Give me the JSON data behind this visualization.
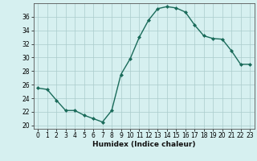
{
  "x": [
    0,
    1,
    2,
    3,
    4,
    5,
    6,
    7,
    8,
    9,
    10,
    11,
    12,
    13,
    14,
    15,
    16,
    17,
    18,
    19,
    20,
    21,
    22,
    23
  ],
  "y": [
    25.5,
    25.3,
    23.7,
    22.2,
    22.2,
    21.5,
    21.0,
    20.5,
    22.2,
    27.5,
    29.8,
    33.0,
    35.5,
    37.2,
    37.5,
    37.3,
    36.7,
    34.8,
    33.2,
    32.8,
    32.7,
    31.0,
    29.0,
    29.0
  ],
  "line_color": "#1a6b5a",
  "marker": "D",
  "markersize": 2.0,
  "linewidth": 1.0,
  "bg_color": "#d6f0f0",
  "grid_color": "#aacccc",
  "xlabel": "Humidex (Indice chaleur)",
  "xlabel_fontsize": 6.5,
  "xlim": [
    -0.5,
    23.5
  ],
  "ylim": [
    19.5,
    38.0
  ],
  "yticks": [
    20,
    22,
    24,
    26,
    28,
    30,
    32,
    34,
    36
  ],
  "xticks": [
    0,
    1,
    2,
    3,
    4,
    5,
    6,
    7,
    8,
    9,
    10,
    11,
    12,
    13,
    14,
    15,
    16,
    17,
    18,
    19,
    20,
    21,
    22,
    23
  ],
  "tick_fontsize": 5.5,
  "spine_color": "#555555"
}
